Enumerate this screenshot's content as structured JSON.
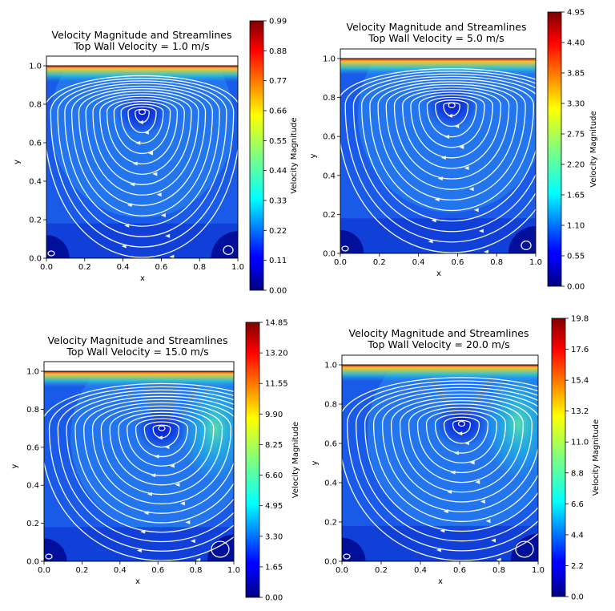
{
  "chart_data": [
    {
      "type": "heatmap",
      "title": "Velocity Magnitude and Streamlines",
      "subtitle": "Top Wall Velocity = 1.0 m/s",
      "xlabel": "x",
      "ylabel": "y",
      "colorbar_label": "Velocity Magnitude",
      "top_wall_velocity": 1.0,
      "xlim": [
        0.0,
        1.0
      ],
      "ylim": [
        0.0,
        1.0
      ],
      "xticks": [
        "0.0",
        "0.2",
        "0.4",
        "0.6",
        "0.8",
        "1.0"
      ],
      "yticks": [
        "0.0",
        "0.2",
        "0.4",
        "0.6",
        "0.8",
        "1.0"
      ],
      "colorbar_range": [
        0.0,
        0.99
      ],
      "colorbar_ticks": [
        "0.00",
        "0.11",
        "0.22",
        "0.33",
        "0.44",
        "0.55",
        "0.66",
        "0.77",
        "0.88",
        "0.99"
      ],
      "vortex_center": [
        0.5,
        0.76
      ],
      "colormap": "jet"
    },
    {
      "type": "heatmap",
      "title": "Velocity Magnitude and Streamlines",
      "subtitle": "Top Wall Velocity = 5.0 m/s",
      "xlabel": "x",
      "ylabel": "y",
      "colorbar_label": "Velocity Magnitude",
      "top_wall_velocity": 5.0,
      "xlim": [
        0.0,
        1.0
      ],
      "ylim": [
        0.0,
        1.0
      ],
      "xticks": [
        "0.0",
        "0.2",
        "0.4",
        "0.6",
        "0.8",
        "1.0"
      ],
      "yticks": [
        "0.0",
        "0.2",
        "0.4",
        "0.6",
        "0.8",
        "1.0"
      ],
      "colorbar_range": [
        0.0,
        4.95
      ],
      "colorbar_ticks": [
        "0.00",
        "0.55",
        "1.10",
        "1.65",
        "2.20",
        "2.75",
        "3.30",
        "3.85",
        "4.40",
        "4.95"
      ],
      "vortex_center": [
        0.57,
        0.76
      ],
      "colormap": "jet"
    },
    {
      "type": "heatmap",
      "title": "Velocity Magnitude and Streamlines",
      "subtitle": "Top Wall Velocity = 15.0 m/s",
      "xlabel": "x",
      "ylabel": "y",
      "colorbar_label": "Velocity Magnitude",
      "top_wall_velocity": 15.0,
      "xlim": [
        0.0,
        1.0
      ],
      "ylim": [
        0.0,
        1.0
      ],
      "xticks": [
        "0.0",
        "0.2",
        "0.4",
        "0.6",
        "0.8",
        "1.0"
      ],
      "yticks": [
        "0.0",
        "0.2",
        "0.4",
        "0.6",
        "0.8",
        "1.0"
      ],
      "colorbar_range": [
        0.0,
        14.85
      ],
      "colorbar_ticks": [
        "0.00",
        "1.65",
        "3.30",
        "4.95",
        "6.60",
        "8.25",
        "9.90",
        "11.55",
        "13.20",
        "14.85"
      ],
      "vortex_center": [
        0.62,
        0.7
      ],
      "colormap": "jet"
    },
    {
      "type": "heatmap",
      "title": "Velocity Magnitude and Streamlines",
      "subtitle": "Top Wall Velocity = 20.0 m/s",
      "xlabel": "x",
      "ylabel": "y",
      "colorbar_label": "Velocity Magnitude",
      "top_wall_velocity": 20.0,
      "xlim": [
        0.0,
        1.0
      ],
      "ylim": [
        0.0,
        1.0
      ],
      "xticks": [
        "0.0",
        "0.2",
        "0.4",
        "0.6",
        "0.8",
        "1.0"
      ],
      "yticks": [
        "0.0",
        "0.2",
        "0.4",
        "0.6",
        "0.8",
        "1.0"
      ],
      "colorbar_range": [
        0.0,
        19.8
      ],
      "colorbar_ticks": [
        "0.0",
        "2.2",
        "4.4",
        "6.6",
        "8.8",
        "11.0",
        "13.2",
        "15.4",
        "17.6",
        "19.8"
      ],
      "vortex_center": [
        0.61,
        0.7
      ],
      "colormap": "jet"
    }
  ]
}
